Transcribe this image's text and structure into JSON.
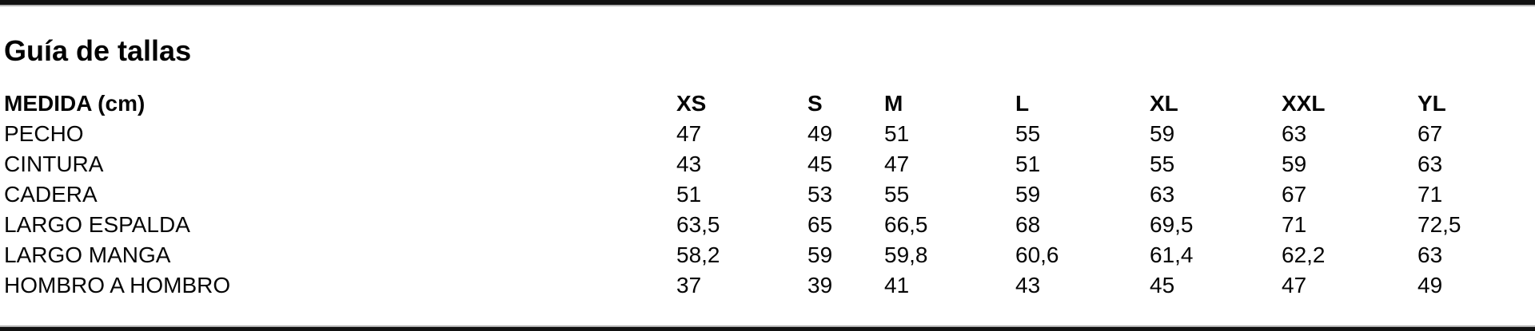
{
  "page": {
    "title": "Guía de tallas"
  },
  "size_table": {
    "measure_header": "MEDIDA (cm)",
    "columns": [
      "XS",
      "S",
      "M",
      "L",
      "XL",
      "XXL",
      "YL"
    ],
    "rows": [
      {
        "label": "PECHO",
        "values": [
          "47",
          "49",
          "51",
          "55",
          "59",
          "63",
          "67"
        ]
      },
      {
        "label": "CINTURA",
        "values": [
          "43",
          "45",
          "47",
          "51",
          "55",
          "59",
          "63"
        ]
      },
      {
        "label": "CADERA",
        "values": [
          "51",
          "53",
          "55",
          "59",
          "63",
          "67",
          "71"
        ]
      },
      {
        "label": "LARGO ESPALDA",
        "values": [
          "63,5",
          "65",
          "66,5",
          "68",
          "69,5",
          "71",
          "72,5"
        ]
      },
      {
        "label": "LARGO MANGA",
        "values": [
          "58,2",
          "59",
          "59,8",
          "60,6",
          "61,4",
          "62,2",
          "63"
        ]
      },
      {
        "label": "HOMBRO A HOMBRO",
        "values": [
          "37",
          "39",
          "41",
          "43",
          "45",
          "47",
          "49"
        ]
      }
    ]
  },
  "colors": {
    "background": "#ffffff",
    "text": "#050505",
    "divider_bar": "#111111",
    "divider_edge": "#b5b5b5"
  }
}
